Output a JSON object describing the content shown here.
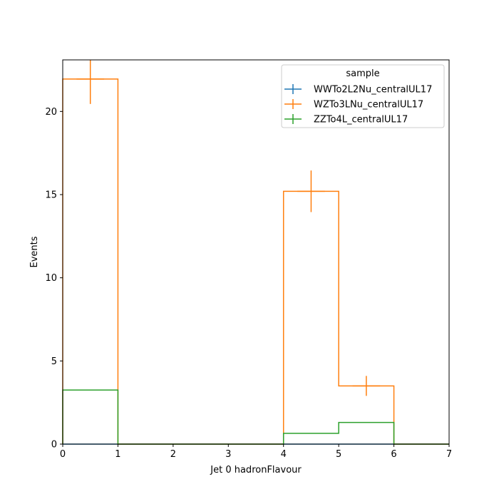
{
  "chart_data": {
    "type": "histogram",
    "xlabel": "Jet 0 hadronFlavour",
    "ylabel": "Events",
    "xlim": [
      0,
      7
    ],
    "ylim": [
      0,
      23.1
    ],
    "xticks": [
      "0",
      "1",
      "2",
      "3",
      "4",
      "5",
      "6",
      "7"
    ],
    "yticks": [
      "0",
      "5",
      "10",
      "15",
      "20"
    ],
    "ytick_values": [
      0,
      5,
      10,
      15,
      20
    ],
    "bin_edges": [
      0,
      1,
      2,
      3,
      4,
      5,
      6,
      7
    ],
    "grid": false,
    "legend": {
      "title": "sample",
      "placement": "top-right"
    },
    "series": [
      {
        "name": "WWTo2L2Nu_centralUL17",
        "color": "#1f77b4",
        "values": [
          0,
          0,
          0,
          0,
          0,
          0,
          0
        ],
        "errors": [
          0,
          0,
          0,
          0,
          0,
          0,
          0
        ]
      },
      {
        "name": "WZTo3LNu_centralUL17",
        "color": "#ff7f0e",
        "values": [
          21.95,
          0,
          0,
          0,
          15.2,
          3.5,
          0
        ],
        "errors": [
          1.5,
          0,
          0,
          0,
          1.25,
          0.6,
          0
        ]
      },
      {
        "name": "ZZTo4L_centralUL17",
        "color": "#2ca02c",
        "values": [
          3.25,
          0,
          0,
          0,
          0.65,
          1.3,
          0
        ],
        "errors": [
          0,
          0,
          0,
          0,
          0,
          0,
          0
        ]
      }
    ]
  }
}
